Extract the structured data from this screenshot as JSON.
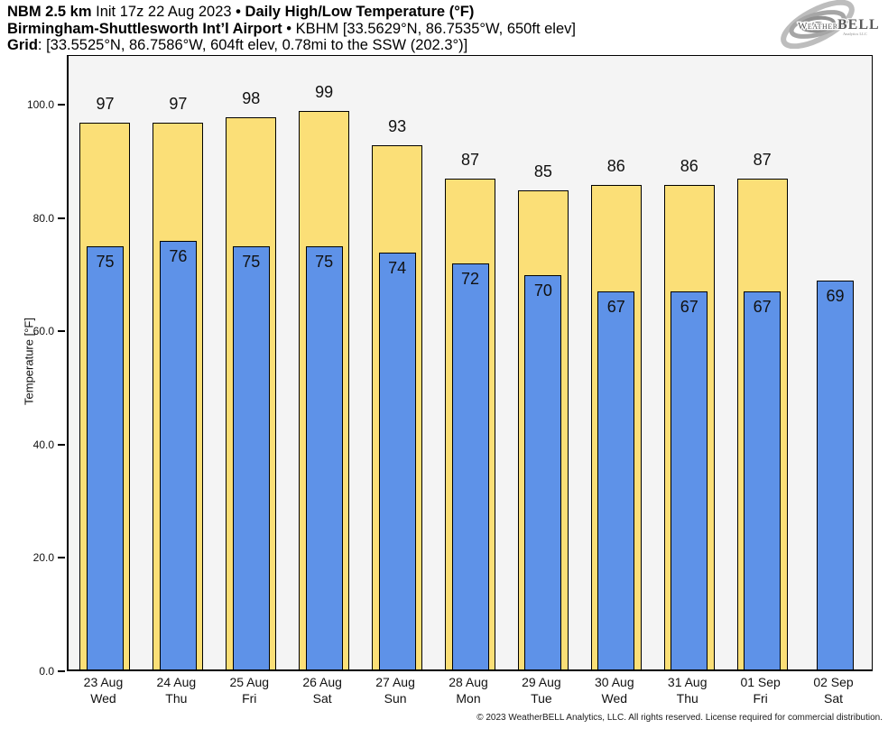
{
  "header": {
    "line1_model": "NBM 2.5 km",
    "line1_init": " Init 17z 22 Aug 2023 ",
    "line1_sep": "• ",
    "line1_title": "Daily High/Low Temperature (°F)",
    "line2_station": "Birmingham-Shuttlesworth Int’l Airport",
    "line2_info": " • KBHM [33.5629°N, 86.7535°W, 650ft elev]",
    "line3_label": "Grid",
    "line3_info": ": [33.5525°N, 86.7586°W, 604ft elev, 0.78mi to the SSW (202.3°)]"
  },
  "logo": {
    "brand_small": "Weather",
    "brand_big": "BELL",
    "subtext": "Analytics LLC"
  },
  "footer": {
    "copyright": "© 2023 WeatherBELL Analytics, LLC. All rights reserved. License required for commercial distribution."
  },
  "chart_data": {
    "type": "bar",
    "title": "NBM 2.5 km Init 17z 22 Aug 2023 • Daily High/Low Temperature (°F)",
    "ylabel": "Temperature [°F]",
    "xlabel": "",
    "categories": [
      "23 Aug",
      "24 Aug",
      "25 Aug",
      "26 Aug",
      "27 Aug",
      "28 Aug",
      "29 Aug",
      "30 Aug",
      "31 Aug",
      "01 Sep",
      "02 Sep"
    ],
    "weekdays": [
      "Wed",
      "Thu",
      "Fri",
      "Sat",
      "Sun",
      "Mon",
      "Tue",
      "Wed",
      "Thu",
      "Fri",
      "Sat"
    ],
    "series": [
      {
        "name": "High",
        "color": "#FBDF77",
        "values": [
          97,
          97,
          98,
          99,
          93,
          87,
          85,
          86,
          86,
          87,
          null
        ]
      },
      {
        "name": "Low",
        "color": "#5E92E8",
        "values": [
          75,
          76,
          75,
          75,
          74,
          72,
          70,
          67,
          67,
          67,
          69
        ]
      }
    ],
    "yticks": [
      0,
      20,
      40,
      60,
      80,
      100
    ],
    "ytick_labels": [
      "0.0",
      "20.0",
      "40.0",
      "60.0",
      "80.0",
      "100.0"
    ],
    "ylim": [
      0,
      108.8
    ],
    "grid": false,
    "legend": false,
    "plot_background": "#f4f4f4",
    "bar_border_color": "#000000"
  }
}
